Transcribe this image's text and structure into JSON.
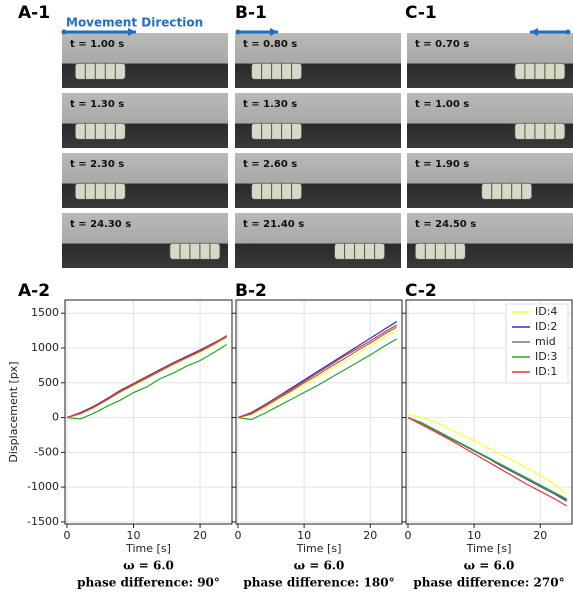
{
  "photos": [
    {
      "label": "A-1",
      "arrow_text": "Movement Direction",
      "frames": [
        "t = 1.00 s",
        "t = 1.30 s",
        "t = 2.30 s",
        "t = 24.30 s"
      ]
    },
    {
      "label": "B-1",
      "frames": [
        "t = 0.80 s",
        "t = 1.30 s",
        "t = 2.60 s",
        "t = 21.40 s"
      ]
    },
    {
      "label": "C-1",
      "frames": [
        "t = 0.70 s",
        "t = 1.00 s",
        "t = 1.90 s",
        "t = 24.50 s"
      ]
    }
  ],
  "chart_data": [
    {
      "type": "line",
      "title": "A-2",
      "x_label": "Time [s]",
      "y_label": "Displacement [px]",
      "annotations": [
        "ω = 6.0",
        "phase difference: 90°"
      ],
      "x": [
        0,
        2,
        4,
        6,
        8,
        10,
        12,
        14,
        16,
        18,
        20,
        22,
        24
      ],
      "series": [
        {
          "color": "#ffff33",
          "values": [
            0,
            50,
            140,
            250,
            360,
            460,
            560,
            660,
            760,
            850,
            940,
            1040,
            1150
          ]
        },
        {
          "color": "#2233cc",
          "values": [
            0,
            70,
            160,
            270,
            390,
            490,
            590,
            690,
            790,
            880,
            970,
            1070,
            1170
          ]
        },
        {
          "color": "#777777",
          "values": [
            0,
            55,
            145,
            255,
            370,
            470,
            570,
            670,
            770,
            860,
            950,
            1050,
            1160
          ]
        },
        {
          "color": "#22aa22",
          "values": [
            0,
            -20,
            60,
            160,
            250,
            360,
            440,
            560,
            640,
            740,
            820,
            930,
            1050
          ]
        },
        {
          "color": "#ee3333",
          "values": [
            0,
            60,
            150,
            260,
            380,
            480,
            580,
            680,
            780,
            870,
            960,
            1060,
            1180
          ]
        }
      ],
      "xlim": [
        -0.3,
        24.8
      ],
      "ylim": [
        -1530,
        1690
      ],
      "xticks": [
        0,
        10,
        20
      ],
      "yticks": [
        -1500,
        -1000,
        -500,
        0,
        500,
        1000,
        1500
      ],
      "show_ytick_labels": true,
      "grid": true
    },
    {
      "type": "line",
      "title": "B-2",
      "x_label": "Time [s]",
      "annotations": [
        "ω = 6.0",
        "phase difference: 180°"
      ],
      "x": [
        0,
        2,
        4,
        6,
        8,
        10,
        12,
        14,
        16,
        18,
        20,
        22,
        24
      ],
      "series": [
        {
          "color": "#ffff33",
          "values": [
            0,
            40,
            140,
            250,
            360,
            470,
            580,
            690,
            800,
            920,
            1030,
            1150,
            1260
          ]
        },
        {
          "color": "#2233cc",
          "values": [
            0,
            70,
            180,
            300,
            420,
            540,
            660,
            780,
            900,
            1020,
            1140,
            1260,
            1380
          ]
        },
        {
          "color": "#777777",
          "values": [
            0,
            50,
            160,
            270,
            380,
            500,
            610,
            730,
            840,
            960,
            1070,
            1190,
            1300
          ]
        },
        {
          "color": "#22aa22",
          "values": [
            0,
            -30,
            60,
            160,
            260,
            360,
            460,
            570,
            680,
            790,
            900,
            1020,
            1130
          ]
        },
        {
          "color": "#ee3333",
          "values": [
            0,
            60,
            170,
            290,
            400,
            520,
            640,
            760,
            880,
            990,
            1100,
            1220,
            1330
          ]
        }
      ],
      "xlim": [
        -0.3,
        24.8
      ],
      "ylim": [
        -1530,
        1690
      ],
      "xticks": [
        0,
        10,
        20
      ],
      "yticks": [
        -1500,
        -1000,
        -500,
        0,
        500,
        1000,
        1500
      ],
      "show_ytick_labels": false,
      "grid": true
    },
    {
      "type": "line",
      "title": "C-2",
      "x_label": "Time [s]",
      "annotations": [
        "ω = 6.0",
        "phase difference: 270°"
      ],
      "x": [
        0,
        2,
        4,
        6,
        8,
        10,
        12,
        14,
        16,
        18,
        20,
        22,
        24
      ],
      "series": [
        {
          "name": "ID:4",
          "color": "#ffff33",
          "values": [
            50,
            0,
            -60,
            -150,
            -240,
            -330,
            -430,
            -530,
            -620,
            -730,
            -830,
            -950,
            -1100
          ]
        },
        {
          "name": "ID:2",
          "color": "#2233cc",
          "values": [
            0,
            -80,
            -180,
            -280,
            -380,
            -480,
            -580,
            -690,
            -790,
            -890,
            -990,
            -1090,
            -1200
          ]
        },
        {
          "name": "mid",
          "color": "#777777",
          "values": [
            0,
            -80,
            -175,
            -275,
            -375,
            -475,
            -575,
            -680,
            -780,
            -880,
            -980,
            -1080,
            -1180
          ]
        },
        {
          "name": "ID:3",
          "color": "#22aa22",
          "values": [
            0,
            -70,
            -170,
            -270,
            -370,
            -470,
            -570,
            -670,
            -770,
            -870,
            -970,
            -1070,
            -1170
          ]
        },
        {
          "name": "ID:1",
          "color": "#ee3333",
          "values": [
            0,
            -100,
            -200,
            -300,
            -410,
            -520,
            -630,
            -740,
            -850,
            -960,
            -1060,
            -1160,
            -1270
          ]
        }
      ],
      "xlim": [
        -0.3,
        24.8
      ],
      "ylim": [
        -1530,
        1690
      ],
      "xticks": [
        0,
        10,
        20
      ],
      "yticks": [
        -1500,
        -1000,
        -500,
        0,
        500,
        1000,
        1500
      ],
      "show_ytick_labels": false,
      "grid": true,
      "legend": "upper right"
    }
  ]
}
